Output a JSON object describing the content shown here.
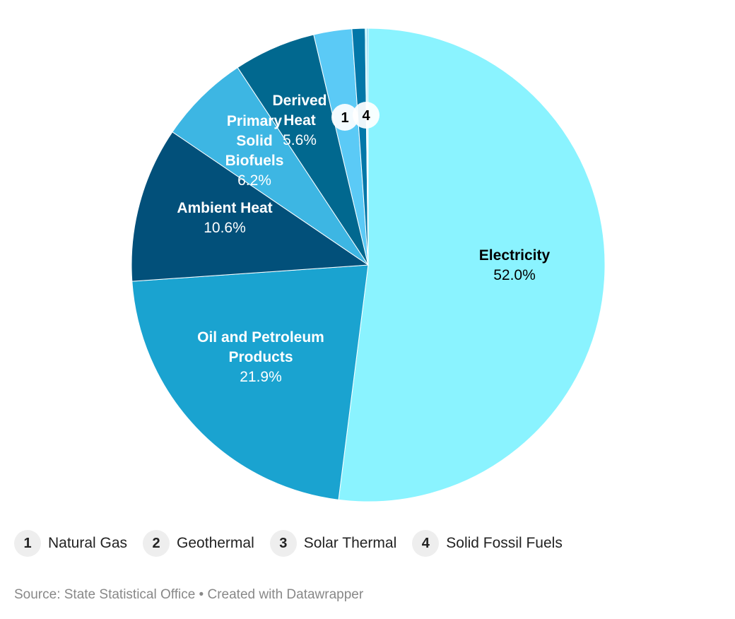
{
  "chart_data": {
    "type": "pie",
    "slices": [
      {
        "label": "Electricity",
        "value": 52.0,
        "display": "52.0%",
        "color": "#8af3ff",
        "text": "#000"
      },
      {
        "label": "Oil and Petroleum Products",
        "value": 21.9,
        "display": "21.9%",
        "color": "#1aa3d0",
        "text": "#fff"
      },
      {
        "label": "Ambient Heat",
        "value": 10.6,
        "display": "10.6%",
        "color": "#02507a",
        "text": "#fff"
      },
      {
        "label": "Primary Solid Biofuels",
        "value": 6.2,
        "display": "6.2%",
        "color": "#3db6e3",
        "text": "#fff"
      },
      {
        "label": "Derived Heat",
        "value": 5.6,
        "display": "5.6%",
        "color": "#01688f",
        "text": "#fff"
      },
      {
        "label": "Natural Gas",
        "value": 2.6,
        "marker": "1",
        "color": "#5bcaf6"
      },
      {
        "label": "Geothermal",
        "value": 0.9,
        "marker": "2",
        "color": "#0277a8"
      },
      {
        "label": "Solar Thermal",
        "value": 0.1,
        "marker": "3",
        "color": "#9ff6ff"
      },
      {
        "label": "Solid Fossil Fuels",
        "value": 0.1,
        "marker": "4",
        "color": "#5bcaf6"
      }
    ]
  },
  "legend": [
    {
      "n": "1",
      "label": "Natural Gas"
    },
    {
      "n": "2",
      "label": "Geothermal"
    },
    {
      "n": "3",
      "label": "Solar Thermal"
    },
    {
      "n": "4",
      "label": "Solid Fossil Fuels"
    }
  ],
  "source": "Source: State Statistical Office • Created with Datawrapper"
}
